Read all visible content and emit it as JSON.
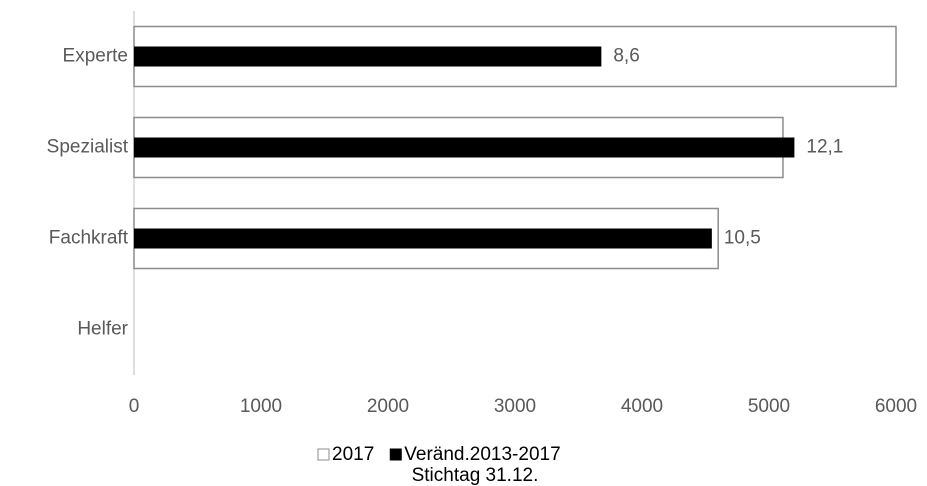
{
  "chart_data": {
    "type": "hbar",
    "subtitle": "Stichtag 31.12.",
    "categories": [
      "Experte",
      "Spezialist",
      "Fachkraft",
      "Helfer"
    ],
    "series": [
      {
        "name": "2017",
        "color": "#ffffff",
        "edge": "#8c8c8c",
        "values": [
          6000,
          5110,
          4600,
          null
        ]
      },
      {
        "name": "Veränd.2013-2017",
        "color": "#000000",
        "values": [
          3680,
          5200,
          4550,
          null
        ]
      }
    ],
    "annotations": [
      "8,6",
      "12,1",
      "10,5"
    ],
    "xlim": [
      0,
      6000
    ],
    "xticks": [
      0,
      1000,
      2000,
      3000,
      4000,
      5000,
      6000
    ],
    "legend": "bottom"
  }
}
